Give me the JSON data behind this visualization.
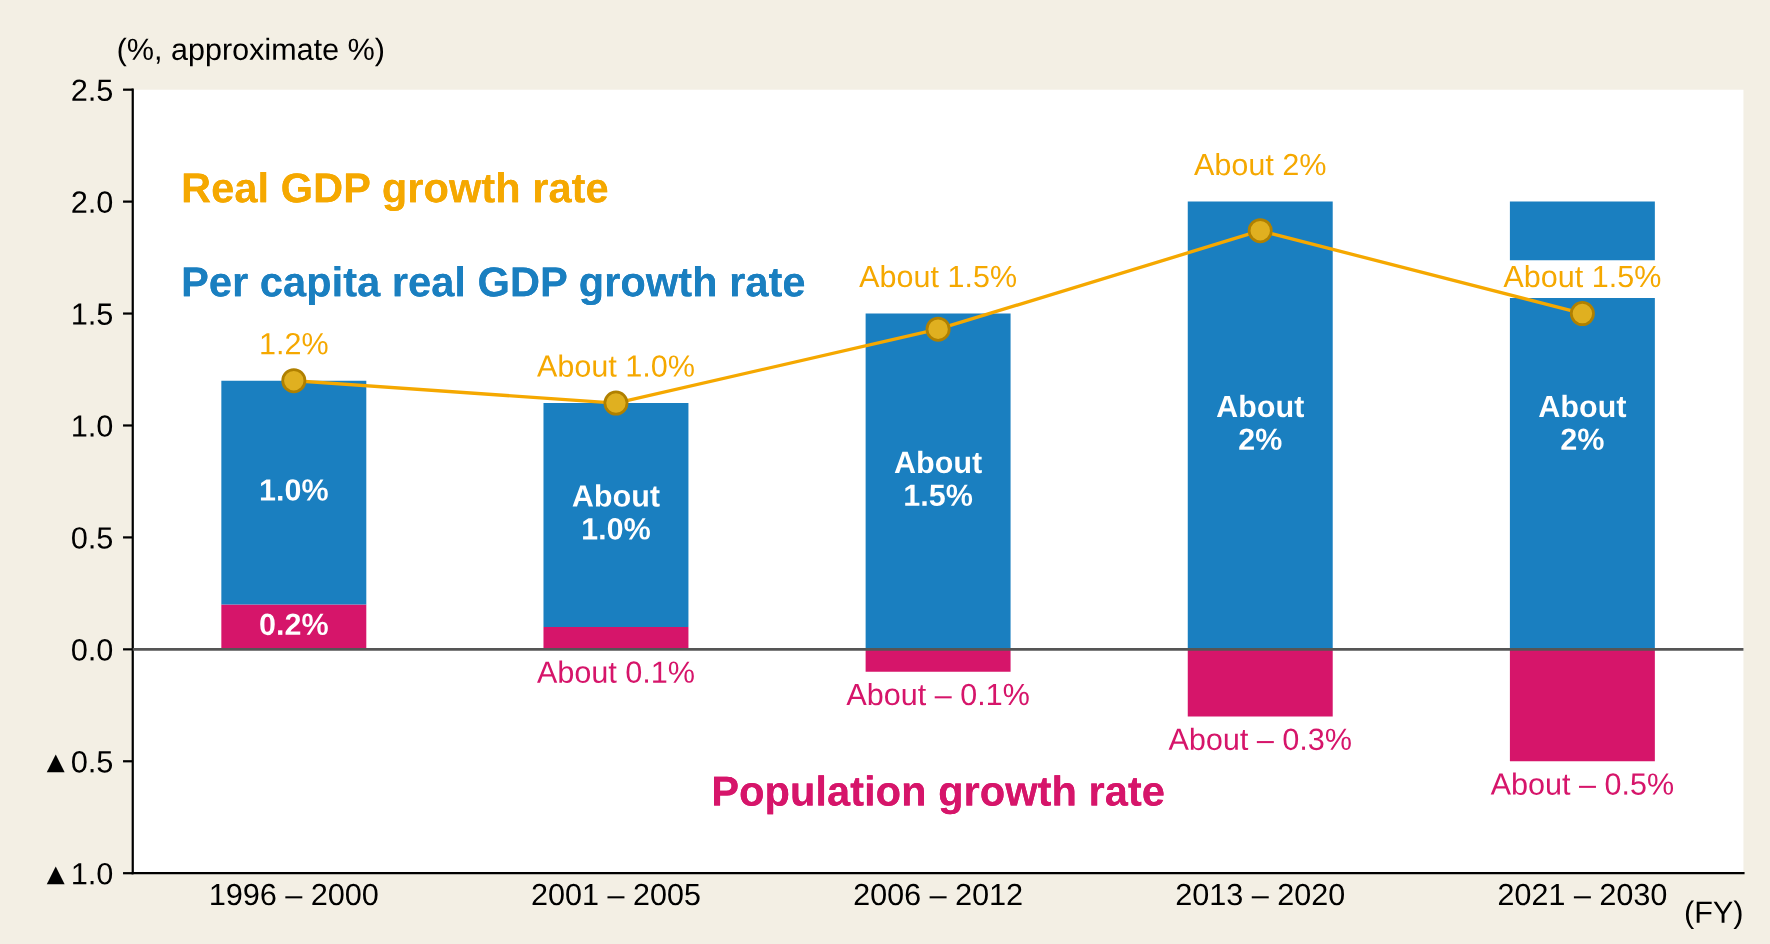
{
  "chart_data": {
    "type": "bar",
    "stacked": true,
    "ylabel": "(%, approximate %)",
    "xlabel": "(FY)",
    "categories": [
      "1996 – 2000",
      "2001 – 2005",
      "2006 – 2012",
      "2013 – 2020",
      "2021 – 2030"
    ],
    "series": [
      {
        "name": "Population growth rate",
        "color": "#d6156a",
        "values": [
          0.2,
          0.1,
          -0.1,
          -0.3,
          -0.5
        ],
        "value_labels": [
          "0.2%",
          "About 0.1%",
          "About – 0.1%",
          "About – 0.3%",
          "About – 0.5%"
        ]
      },
      {
        "name": "Per capita real GDP growth rate",
        "color": "#1a7fc0",
        "values": [
          1.0,
          1.0,
          1.5,
          2.0,
          2.0
        ],
        "value_labels": [
          "1.0%",
          "About\n1.0%",
          "About\n1.5%",
          "About\n2%",
          "About\n2%"
        ]
      },
      {
        "name": "Real GDP growth rate",
        "type": "line",
        "color": "#f5a800",
        "marker": "circle",
        "values": [
          1.2,
          1.1,
          1.43,
          1.87,
          1.5
        ],
        "value_labels": [
          "1.2%",
          "About 1.0%",
          "About 1.5%",
          "About 2%",
          "About 1.5%"
        ]
      }
    ],
    "ylim": [
      -1.0,
      2.5
    ],
    "yticks": [
      {
        "value": -1.0,
        "label": "▲1.0"
      },
      {
        "value": -0.5,
        "label": "▲0.5"
      },
      {
        "value": 0.0,
        "label": "0.0"
      },
      {
        "value": 0.5,
        "label": "0.5"
      },
      {
        "value": 1.0,
        "label": "1.0"
      },
      {
        "value": 1.5,
        "label": "1.5"
      },
      {
        "value": 2.0,
        "label": "2.0"
      },
      {
        "value": 2.5,
        "label": "2.5"
      }
    ],
    "ref_lines": [
      {
        "axis": "y",
        "value": 0,
        "color": "#555555"
      }
    ],
    "grid": false,
    "legend": false
  }
}
